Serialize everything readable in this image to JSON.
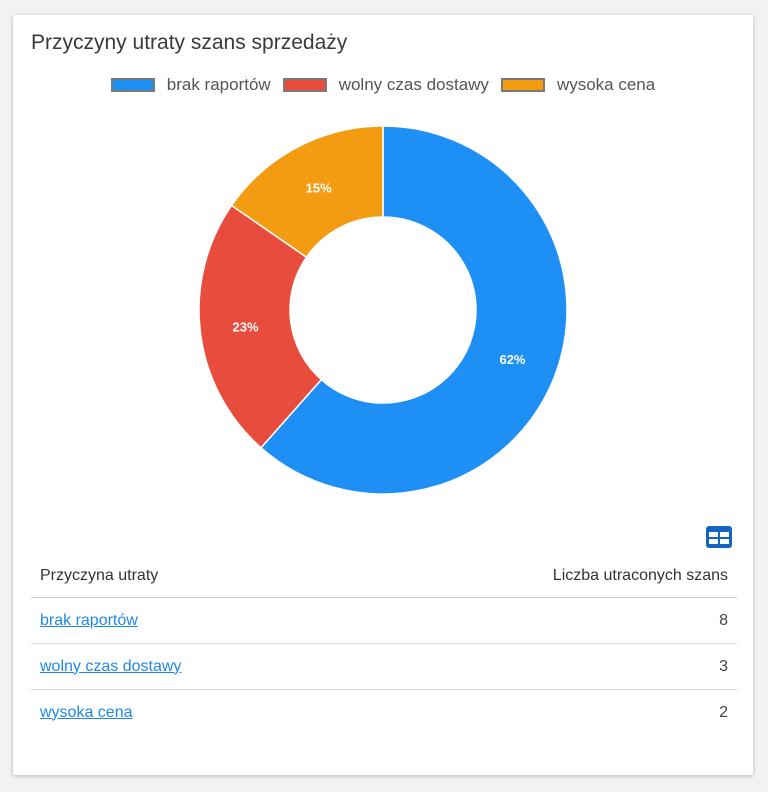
{
  "card": {
    "title": "Przyczyny utraty szans sprzedaży"
  },
  "colors": {
    "brak_raportow": "#1e8ff5",
    "wolny_czas": "#e84c3d",
    "wysoka_cena": "#f39c12",
    "link": "#1e88e5",
    "table_icon": "#1565c0"
  },
  "chart_data": {
    "type": "pie",
    "variant": "donut",
    "title": "Przyczyny utraty szans sprzedaży",
    "legend_position": "top",
    "categories": [
      "brak raportów",
      "wolny czas dostawy",
      "wysoka cena"
    ],
    "values": [
      8,
      3,
      2
    ],
    "percent_labels": [
      "62%",
      "23%",
      "15%"
    ],
    "colors": [
      "#1e8ff5",
      "#e84c3d",
      "#f39c12"
    ]
  },
  "legend": [
    {
      "label": "brak raportów",
      "color": "#1e8ff5"
    },
    {
      "label": "wolny czas dostawy",
      "color": "#e84c3d"
    },
    {
      "label": "wysoka cena",
      "color": "#f39c12"
    }
  ],
  "table": {
    "icon": "table-icon",
    "headers": {
      "reason": "Przyczyna utraty",
      "count": "Liczba utraconych szans"
    },
    "rows": [
      {
        "reason": "brak raportów",
        "count": "8"
      },
      {
        "reason": "wolny czas dostawy",
        "count": "3"
      },
      {
        "reason": "wysoka cena",
        "count": "2"
      }
    ]
  }
}
